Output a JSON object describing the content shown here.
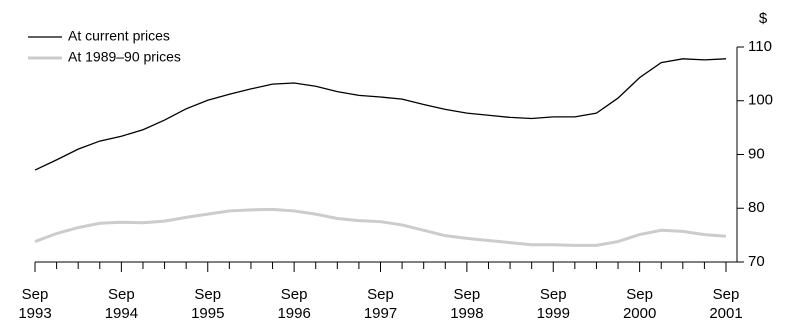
{
  "chart_data": {
    "type": "line",
    "y_label": "$",
    "categories": [
      "Sep 1993",
      null,
      null,
      null,
      "Sep 1994",
      null,
      null,
      null,
      "Sep 1995",
      null,
      null,
      null,
      "Sep 1996",
      null,
      null,
      null,
      "Sep 1997",
      null,
      null,
      null,
      "Sep 1998",
      null,
      null,
      null,
      "Sep 1999",
      null,
      null,
      null,
      "Sep 2000",
      null,
      null,
      null,
      "Sep 2001"
    ],
    "series": [
      {
        "name": "At current prices",
        "color": "#000000",
        "width": 1.3,
        "values": [
          87.1,
          89.0,
          91.0,
          92.5,
          93.4,
          94.6,
          96.4,
          98.5,
          100.1,
          101.2,
          102.2,
          103.1,
          103.3,
          102.7,
          101.7,
          101.0,
          100.7,
          100.3,
          99.3,
          98.4,
          97.7,
          97.3,
          96.9,
          96.7,
          97.0,
          97.0,
          97.7,
          100.5,
          104.3,
          107.1,
          107.8,
          107.6,
          107.8
        ]
      },
      {
        "name": "At 1989–90 prices",
        "color": "#cccccc",
        "width": 3,
        "values": [
          73.8,
          75.3,
          76.4,
          77.2,
          77.4,
          77.3,
          77.6,
          78.3,
          78.9,
          79.5,
          79.7,
          79.8,
          79.5,
          78.9,
          78.1,
          77.7,
          77.5,
          76.9,
          75.9,
          74.9,
          74.4,
          74.0,
          73.6,
          73.2,
          73.2,
          73.1,
          73.1,
          73.8,
          75.1,
          75.9,
          75.7,
          75.1,
          74.8
        ]
      }
    ],
    "ylim": [
      70,
      110
    ],
    "yticks": [
      70,
      80,
      90,
      100,
      110
    ],
    "y_axis_side": "right",
    "legend": "top-left"
  }
}
